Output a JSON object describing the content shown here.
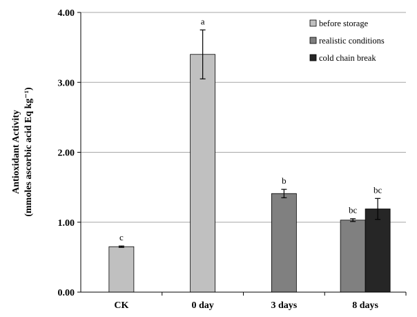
{
  "chart_data": {
    "type": "bar",
    "title": "",
    "xlabel": "",
    "ylabel_line1": "Antioxidant Activity",
    "ylabel_line2": "(mmoles ascorbic acid Eq kg⁻¹)",
    "ylim": [
      0,
      4
    ],
    "yticks": [
      "0.00",
      "1.00",
      "2.00",
      "3.00",
      "4.00"
    ],
    "grid": true,
    "legend_position": "top-right",
    "categories": [
      "CK",
      "0 day",
      "3 days",
      "8 days"
    ],
    "series": [
      {
        "name": "before storage",
        "color": "#c0c0c0",
        "values": [
          0.65,
          3.4,
          null,
          null
        ],
        "errors": [
          0.01,
          0.35,
          null,
          null
        ],
        "labels": [
          "c",
          "a",
          null,
          null
        ]
      },
      {
        "name": "realistic conditions",
        "color": "#808080",
        "values": [
          null,
          null,
          1.41,
          1.03
        ],
        "errors": [
          null,
          null,
          0.06,
          0.02
        ],
        "labels": [
          null,
          null,
          "b",
          "bc"
        ]
      },
      {
        "name": "cold chain break",
        "color": "#262626",
        "values": [
          null,
          null,
          null,
          1.19
        ],
        "errors": [
          null,
          null,
          null,
          0.15
        ],
        "labels": [
          null,
          null,
          null,
          "bc"
        ]
      }
    ]
  }
}
